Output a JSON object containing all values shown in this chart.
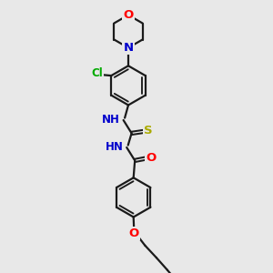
{
  "background_color": "#e8e8e8",
  "bond_color": "#1a1a1a",
  "bond_width": 1.6,
  "atom_colors": {
    "O": "#ff0000",
    "N": "#0000cc",
    "S": "#aaaa00",
    "Cl": "#00aa00",
    "C": "#1a1a1a",
    "H": "#1a1a1a"
  },
  "font_size": 8.5,
  "fig_size": [
    3.0,
    3.0
  ],
  "dpi": 100,
  "xlim": [
    0,
    10
  ],
  "ylim": [
    0,
    10
  ]
}
